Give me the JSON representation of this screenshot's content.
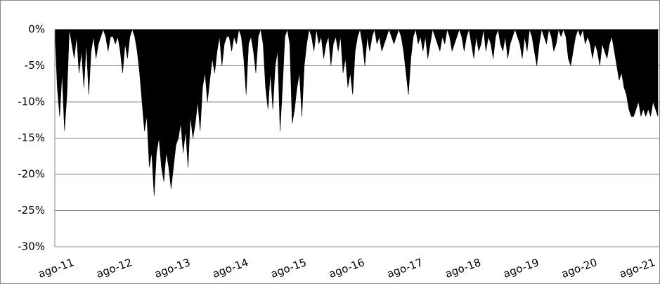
{
  "chart_data": {
    "type": "area",
    "color": "#000000",
    "grid": true,
    "ylim": [
      -30,
      0
    ],
    "yticks": [
      {
        "value": 0,
        "label": "0%"
      },
      {
        "value": -5,
        "label": "-5%"
      },
      {
        "value": -10,
        "label": "-10%"
      },
      {
        "value": -15,
        "label": "-15%"
      },
      {
        "value": -20,
        "label": "-20%"
      },
      {
        "value": -25,
        "label": "-25%"
      },
      {
        "value": -30,
        "label": "-30%"
      }
    ],
    "categories": [
      "ago-11",
      null,
      null,
      null,
      null,
      null,
      null,
      null,
      null,
      null,
      null,
      null,
      null,
      null,
      null,
      null,
      null,
      null,
      null,
      null,
      null,
      null,
      null,
      null,
      "ago-12",
      null,
      null,
      null,
      null,
      null,
      null,
      null,
      null,
      null,
      null,
      null,
      null,
      null,
      null,
      null,
      null,
      null,
      null,
      null,
      null,
      null,
      null,
      null,
      "ago-13",
      null,
      null,
      null,
      null,
      null,
      null,
      null,
      null,
      null,
      null,
      null,
      null,
      null,
      null,
      null,
      null,
      null,
      null,
      null,
      null,
      null,
      null,
      null,
      "ago-14",
      null,
      null,
      null,
      null,
      null,
      null,
      null,
      null,
      null,
      null,
      null,
      null,
      null,
      null,
      null,
      null,
      null,
      null,
      null,
      null,
      null,
      null,
      null,
      "ago-15",
      null,
      null,
      null,
      null,
      null,
      null,
      null,
      null,
      null,
      null,
      null,
      null,
      null,
      null,
      null,
      null,
      null,
      null,
      null,
      null,
      null,
      null,
      null,
      "ago-16",
      null,
      null,
      null,
      null,
      null,
      null,
      null,
      null,
      null,
      null,
      null,
      null,
      null,
      null,
      null,
      null,
      null,
      null,
      null,
      null,
      null,
      null,
      null,
      "ago-17",
      null,
      null,
      null,
      null,
      null,
      null,
      null,
      null,
      null,
      null,
      null,
      null,
      null,
      null,
      null,
      null,
      null,
      null,
      null,
      null,
      null,
      null,
      null,
      "ago-18",
      null,
      null,
      null,
      null,
      null,
      null,
      null,
      null,
      null,
      null,
      null,
      null,
      null,
      null,
      null,
      null,
      null,
      null,
      null,
      null,
      null,
      null,
      null,
      "ago-19",
      null,
      null,
      null,
      null,
      null,
      null,
      null,
      null,
      null,
      null,
      null,
      null,
      null,
      null,
      null,
      null,
      null,
      null,
      null,
      null,
      null,
      null,
      null,
      "ago-20",
      null,
      null,
      null,
      null,
      null,
      null,
      null,
      null,
      null,
      null,
      null,
      null,
      null,
      null,
      null,
      null,
      null,
      null,
      null,
      null,
      null,
      null,
      null,
      "ago-21",
      null,
      null,
      null,
      null,
      null,
      null,
      null,
      null,
      null
    ],
    "values": [
      0,
      -8,
      -12,
      -6,
      -14,
      -9,
      0,
      -2,
      -4,
      -1,
      -6,
      -3,
      -8,
      -2,
      -9,
      -3,
      -1,
      -4,
      -2,
      -1,
      0,
      -1,
      -3,
      -1,
      -1,
      -2,
      -1,
      -3,
      -6,
      -2,
      -4,
      -1,
      0,
      -1,
      -3,
      -6,
      -10,
      -14,
      -12,
      -19,
      -17,
      -23,
      -17,
      -15,
      -19,
      -21,
      -17,
      -19,
      -22,
      -19,
      -16,
      -15,
      -13,
      -17,
      -14,
      -19,
      -12,
      -15,
      -13,
      -10,
      -14,
      -8,
      -6,
      -10,
      -7,
      -4,
      -6,
      -3,
      -1,
      -5,
      -2,
      -1,
      -1,
      -3,
      -1,
      -2,
      0,
      -1,
      -4,
      -9,
      -2,
      -1,
      -3,
      -6,
      -1,
      0,
      -2,
      -8,
      -11,
      -6,
      -11,
      -5,
      -3,
      -14,
      -8,
      -1,
      0,
      -2,
      -13,
      -11,
      -8,
      -6,
      -12,
      -5,
      -2,
      0,
      -1,
      -3,
      0,
      -2,
      -1,
      -4,
      -2,
      -1,
      -5,
      -2,
      -1,
      -3,
      -1,
      -6,
      -4,
      -8,
      -6,
      -9,
      -3,
      -1,
      0,
      -2,
      -5,
      -1,
      -3,
      -1,
      0,
      -2,
      -1,
      -3,
      -2,
      -1,
      0,
      -1,
      -2,
      -1,
      0,
      -1,
      -3,
      -6,
      -9,
      -4,
      -1,
      0,
      -2,
      -1,
      -3,
      -1,
      -4,
      -2,
      0,
      -1,
      -2,
      -3,
      -1,
      -2,
      0,
      -1,
      -3,
      -2,
      -1,
      0,
      -1,
      -3,
      -1,
      0,
      -2,
      -4,
      -1,
      -3,
      -2,
      0,
      -3,
      -1,
      -2,
      -4,
      -1,
      0,
      -2,
      -3,
      -1,
      -4,
      -2,
      -1,
      0,
      -1,
      -2,
      -4,
      -1,
      -3,
      0,
      -1,
      -3,
      -5,
      -2,
      0,
      -1,
      -2,
      0,
      -1,
      -3,
      -2,
      0,
      -1,
      0,
      -1,
      -4,
      -5,
      -3,
      -1,
      0,
      -1,
      0,
      -2,
      -1,
      -2,
      -4,
      -2,
      -3,
      -5,
      -2,
      -3,
      -4,
      -2,
      -1,
      -3,
      -5,
      -7,
      -6,
      -8,
      -9,
      -11,
      -12,
      -12,
      -11,
      -10,
      -12,
      -11,
      -12,
      -11,
      -12,
      -10,
      -11,
      -12
    ]
  }
}
